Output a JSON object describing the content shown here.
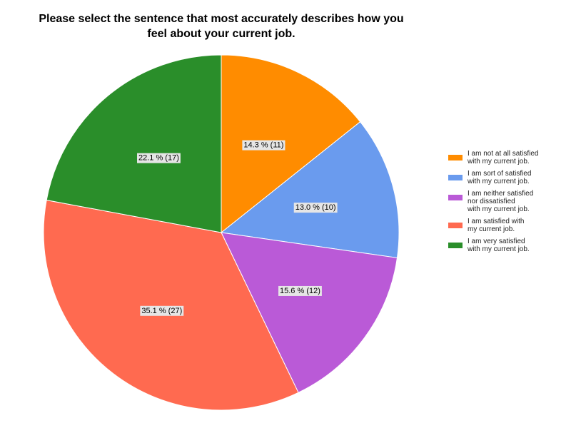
{
  "chart_data": {
    "type": "pie",
    "title_lines": [
      "Please select the sentence that most accurately describes how you",
      "feel about your current job."
    ],
    "slices": [
      {
        "name": "I am not at all satisfied with my current job.",
        "legend_lines": [
          "I am not at all satisfied",
          "with my current job."
        ],
        "value": 11,
        "percent": 14.3,
        "label": "14.3 % (11)",
        "color": "#FF8C00"
      },
      {
        "name": "I am sort of satisfied with my current job.",
        "legend_lines": [
          "I am sort of satisfied",
          "with my current job."
        ],
        "value": 10,
        "percent": 13.0,
        "label": "13.0 % (10)",
        "color": "#6A9BEE"
      },
      {
        "name": "I am neither satisfied nor dissatisfied with my current job.",
        "legend_lines": [
          "I am neither satisfied",
          "nor dissatisfied",
          "with my current job."
        ],
        "value": 12,
        "percent": 15.6,
        "label": "15.6 % (12)",
        "color": "#BA5AD7"
      },
      {
        "name": "I am satisfied with my current job.",
        "legend_lines": [
          "I am satisfied with",
          "my current job."
        ],
        "value": 27,
        "percent": 35.1,
        "label": "35.1 % (27)",
        "color": "#FF6A50"
      },
      {
        "name": "I am very satisfied with my current job.",
        "legend_lines": [
          "I am very satisfied",
          "with my current job."
        ],
        "value": 17,
        "percent": 22.1,
        "label": "22.1 % (17)",
        "color": "#2A8E2A"
      }
    ],
    "start_angle_deg": 0,
    "direction": "clockwise",
    "legend_position": "right"
  }
}
